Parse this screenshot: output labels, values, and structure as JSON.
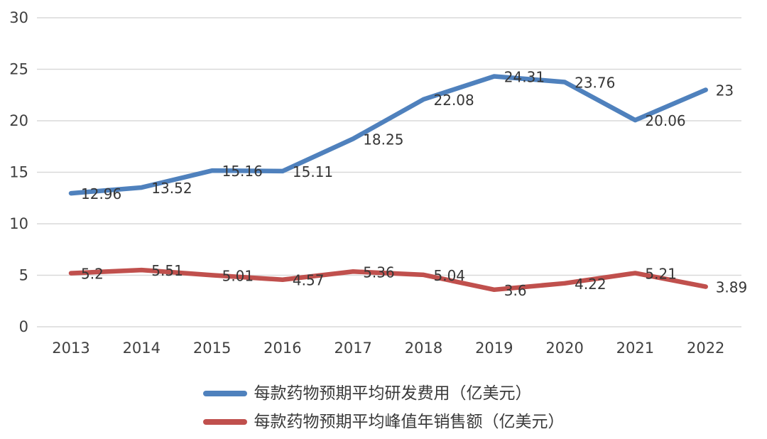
{
  "chart_data": {
    "type": "line",
    "categories": [
      "2013",
      "2014",
      "2015",
      "2016",
      "2017",
      "2018",
      "2019",
      "2020",
      "2021",
      "2022"
    ],
    "series": [
      {
        "name": "每款药物预期平均研发费用（亿美元）",
        "color": "#4F81BD",
        "values": [
          12.96,
          13.52,
          15.16,
          15.11,
          18.25,
          22.08,
          24.31,
          23.76,
          20.06,
          23
        ],
        "labels": [
          "12.96",
          "13.52",
          "15.16",
          "15.11",
          "18.25",
          "22.08",
          "24.31",
          "23.76",
          "20.06",
          "23"
        ]
      },
      {
        "name": "每款药物预期平均峰值年销售额（亿美元）",
        "color": "#C0504D",
        "values": [
          5.2,
          5.51,
          5.01,
          4.57,
          5.36,
          5.04,
          3.6,
          4.22,
          5.21,
          3.89
        ],
        "labels": [
          "5.2",
          "5.51",
          "5.01",
          "4.57",
          "5.36",
          "5.04",
          "3.6",
          "4.22",
          "5.21",
          "3.89"
        ]
      }
    ],
    "title": "",
    "xlabel": "",
    "ylabel": "",
    "ylim": [
      0,
      30
    ],
    "yticks": [
      0,
      5,
      10,
      15,
      20,
      25,
      30
    ],
    "ytick_labels": [
      "0",
      "5",
      "10",
      "15",
      "20",
      "25",
      "30"
    ],
    "grid": true,
    "legend_position": "bottom",
    "colors": {
      "grid_line": "#d9d9d9",
      "tick_text": "#404040",
      "data_label_text": "#363636",
      "background": "#ffffff"
    }
  }
}
